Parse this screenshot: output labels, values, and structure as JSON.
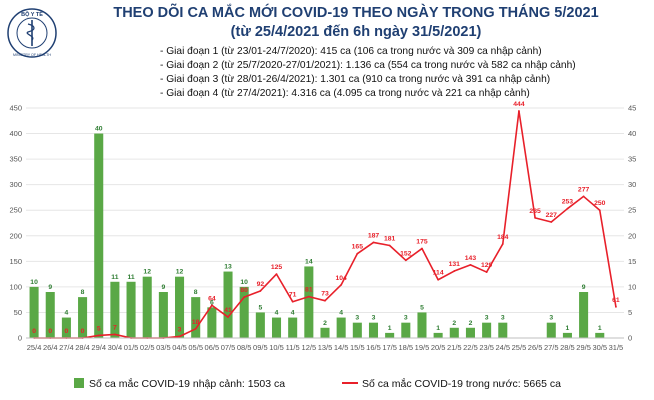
{
  "header": {
    "logo_top": "BỘ Y TẾ",
    "logo_bottom": "MINISTRY OF HEALTH",
    "title": "THEO DÕI CA MẮC MỚI COVID-19 THEO NGÀY TRONG THÁNG 5/2021",
    "subtitle": "(từ 25/4/2021 đến 6h ngày 31/5/2021)",
    "phases": [
      "- Giai đoạn 1 (từ 23/01-24/7/2020): 415 ca (106 ca trong nước và 309 ca nhập cảnh)",
      "- Giai đoạn 2 (từ 25/7/2020-27/01/2021): 1.136 ca (554 ca trong nước và 582 ca nhập cảnh)",
      "- Giai đoạn 3 (từ 28/01-26/4/2021): 1.301 ca (910 ca trong nước và 391 ca nhập cảnh)",
      "- Giai đoạn 4 (từ 27/4/2021): 4.316 ca (4.095 ca trong nước và 221 ca nhập cảnh)"
    ]
  },
  "colors": {
    "title": "#1f3f72",
    "bar": "#5aa846",
    "line": "#e8202a",
    "grid": "#e6e6e6"
  },
  "chart_data": {
    "type": "bar+line",
    "categories": [
      "25/4",
      "26/4",
      "27/4",
      "28/4",
      "29/4",
      "30/4",
      "01/5",
      "02/5",
      "03/5",
      "04/5",
      "05/5",
      "06/5",
      "07/5",
      "08/5",
      "09/5",
      "10/5",
      "11/5",
      "12/5",
      "13/5",
      "14/5",
      "15/5",
      "16/5",
      "17/5",
      "18/5",
      "19/5",
      "20/5",
      "21/5",
      "22/5",
      "23/5",
      "24/5",
      "25/5",
      "26/5",
      "27/5",
      "28/5",
      "29/5",
      "30/5",
      "31/5"
    ],
    "left_axis": {
      "min": 0,
      "max": 450,
      "ticks": [
        0,
        50,
        100,
        150,
        200,
        250,
        300,
        350,
        400,
        450
      ]
    },
    "right_axis": {
      "min": 0,
      "max": 45,
      "ticks": [
        0,
        5,
        10,
        15,
        20,
        25,
        30,
        35,
        40,
        45
      ]
    },
    "series": [
      {
        "name": "Số ca mắc COVID-19 nhập cảnh: 1503 ca",
        "type": "bar",
        "axis": "right",
        "values": [
          10,
          9,
          4,
          8,
          40,
          11,
          11,
          12,
          9,
          12,
          8,
          6,
          13,
          10,
          5,
          4,
          4,
          14,
          2,
          4,
          3,
          3,
          1,
          3,
          5,
          1,
          2,
          2,
          3,
          3,
          0,
          0,
          3,
          1,
          9,
          1,
          0
        ],
        "labels": [
          "10",
          "9",
          "4",
          "8",
          "40",
          "11",
          "11",
          "12",
          "9",
          "12",
          "8",
          "6",
          "13",
          "10",
          "5",
          "4",
          "4",
          "14",
          "2",
          "4",
          "3",
          "3",
          "1",
          "3",
          "5",
          "1",
          "2",
          "2",
          "3",
          "3",
          "",
          "",
          "3",
          "1",
          "9",
          "1",
          ""
        ]
      },
      {
        "name": "Số ca mắc COVID-19 trong nước: 5665 ca",
        "type": "line",
        "axis": "left",
        "values": [
          0,
          0,
          0,
          0,
          5,
          7,
          0,
          0,
          0,
          3,
          18,
          64,
          41,
          80,
          92,
          125,
          71,
          81,
          73,
          104,
          165,
          187,
          181,
          152,
          175,
          114,
          131,
          143,
          129,
          184,
          444,
          235,
          227,
          253,
          277,
          250,
          61
        ],
        "labels": [
          "0",
          "0",
          "0",
          "0",
          "5",
          "7",
          "",
          "",
          "",
          "3",
          "18",
          "64",
          "41",
          "80",
          "92",
          "125",
          "71",
          "81",
          "73",
          "104",
          "165",
          "187",
          "181",
          "152",
          "175",
          "114",
          "131",
          "143",
          "129",
          "184",
          "444",
          "235",
          "227",
          "253",
          "277",
          "250",
          "61"
        ]
      }
    ],
    "legend_position": "bottom"
  }
}
